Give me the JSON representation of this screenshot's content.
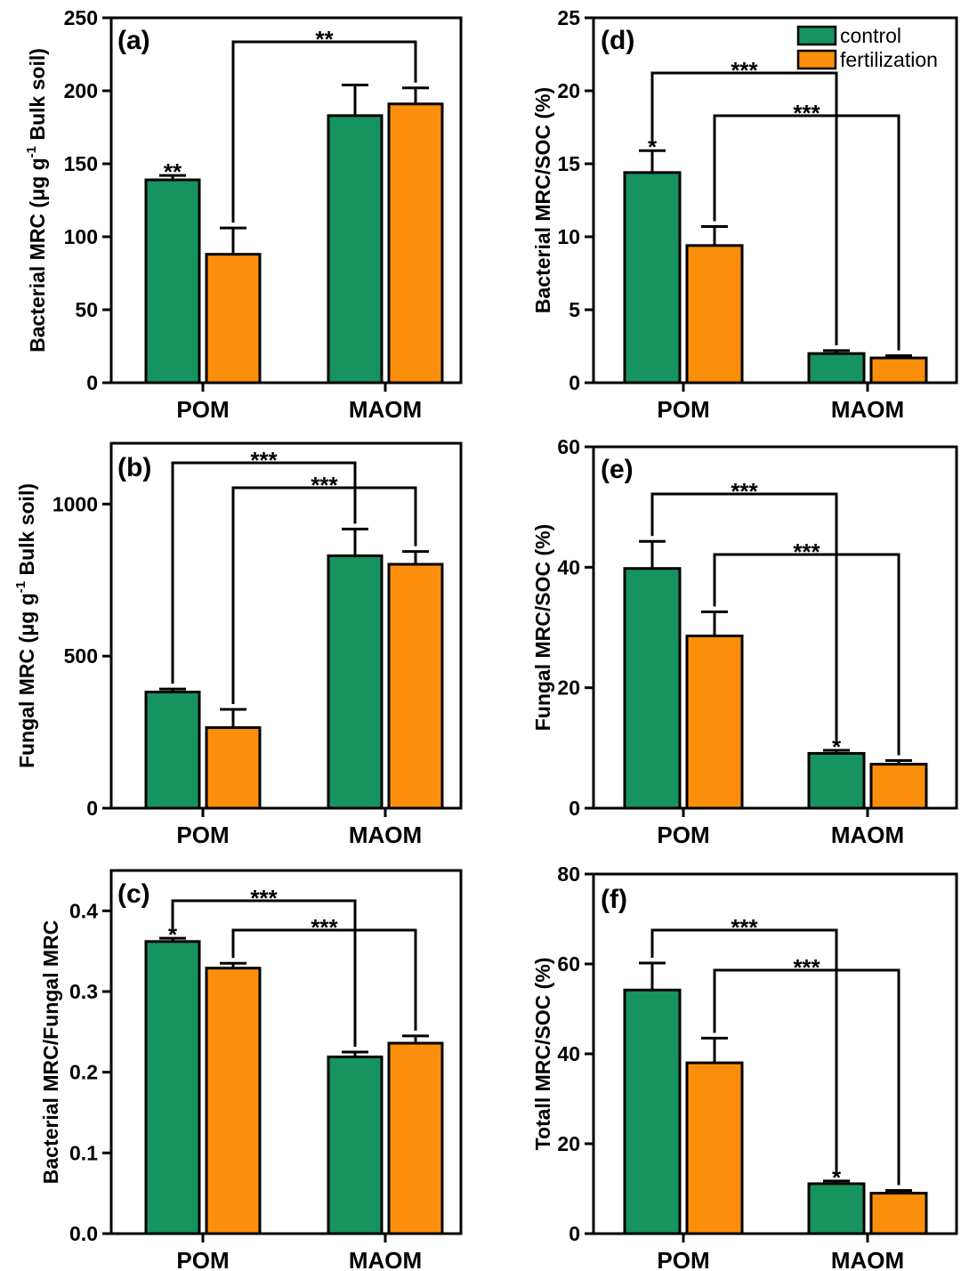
{
  "legend": [
    "control",
    "fertilization"
  ],
  "colors": {
    "control": "#16935e",
    "fertilization": "#fb8e0b"
  },
  "chart_data": [
    {
      "id": "a",
      "type": "bar",
      "panel_label": "(a)",
      "categories": [
        "POM",
        "MAOM"
      ],
      "ylabel": "Bacterial MRC (μg g-1 Bulk soil)",
      "ylabel_parts": [
        "Bacterial MRC (μg g",
        "-1",
        " Bulk soil)"
      ],
      "ylim": [
        0,
        250
      ],
      "yticks": [
        0,
        50,
        100,
        150,
        200,
        250
      ],
      "series": [
        {
          "name": "control",
          "values": [
            139,
            183
          ],
          "errors": [
            3,
            21
          ]
        },
        {
          "name": "fertilization",
          "values": [
            88,
            191
          ],
          "errors": [
            18,
            11
          ]
        }
      ],
      "stars": [
        {
          "text": "**",
          "cat": 0,
          "s": 0
        }
      ],
      "brackets": [
        {
          "text": "**",
          "from": [
            0,
            1
          ],
          "to": [
            1,
            1
          ]
        }
      ]
    },
    {
      "id": "b",
      "type": "bar",
      "panel_label": "(b)",
      "categories": [
        "POM",
        "MAOM"
      ],
      "ylabel": "Fungal MRC (μg g-1 Bulk soil)",
      "ylabel_parts": [
        "Fungal MRC (μg g",
        "-1",
        " Bulk soil)"
      ],
      "ylim": [
        0,
        1200
      ],
      "yticks": [
        0,
        500,
        1000
      ],
      "series": [
        {
          "name": "control",
          "values": [
            382,
            830
          ],
          "errors": [
            10,
            88
          ]
        },
        {
          "name": "fertilization",
          "values": [
            265,
            802
          ],
          "errors": [
            60,
            42
          ]
        }
      ],
      "stars": [],
      "brackets": [
        {
          "text": "***",
          "from": [
            0,
            0
          ],
          "to": [
            1,
            0
          ]
        },
        {
          "text": "***",
          "from": [
            0,
            1
          ],
          "to": [
            1,
            1
          ]
        }
      ]
    },
    {
      "id": "c",
      "type": "bar",
      "panel_label": "(c)",
      "categories": [
        "POM",
        "MAOM"
      ],
      "ylabel": "Bacterial MRC/Fungal MRC",
      "ylabel_parts": [
        "Bacterial MRC/Fungal MRC",
        "",
        ""
      ],
      "ylim": [
        0,
        0.45
      ],
      "yticks": [
        0.0,
        0.1,
        0.2,
        0.3,
        0.4
      ],
      "series": [
        {
          "name": "control",
          "values": [
            0.362,
            0.219
          ],
          "errors": [
            0.004,
            0.006
          ]
        },
        {
          "name": "fertilization",
          "values": [
            0.329,
            0.236
          ],
          "errors": [
            0.006,
            0.009
          ]
        }
      ],
      "stars": [
        {
          "text": "*",
          "cat": 0,
          "s": 0
        }
      ],
      "brackets": [
        {
          "text": "***",
          "from": [
            0,
            0
          ],
          "to": [
            1,
            0
          ]
        },
        {
          "text": "***",
          "from": [
            0,
            1
          ],
          "to": [
            1,
            1
          ]
        }
      ]
    },
    {
      "id": "d",
      "type": "bar",
      "panel_label": "(d)",
      "categories": [
        "POM",
        "MAOM"
      ],
      "ylabel": "Bacterial MRC/SOC (%)",
      "ylabel_parts": [
        "Bacterial MRC/SOC (%)",
        "",
        ""
      ],
      "ylim": [
        0,
        25
      ],
      "yticks": [
        0,
        5,
        10,
        15,
        20,
        25
      ],
      "series": [
        {
          "name": "control",
          "values": [
            14.4,
            2.0
          ],
          "errors": [
            1.5,
            0.2
          ]
        },
        {
          "name": "fertilization",
          "values": [
            9.4,
            1.7
          ],
          "errors": [
            1.3,
            0.15
          ]
        }
      ],
      "stars": [
        {
          "text": "*",
          "cat": 0,
          "s": 0
        }
      ],
      "brackets": [
        {
          "text": "***",
          "from": [
            0,
            0
          ],
          "to": [
            1,
            0
          ]
        },
        {
          "text": "***",
          "from": [
            0,
            1
          ],
          "to": [
            1,
            1
          ]
        }
      ]
    },
    {
      "id": "e",
      "type": "bar",
      "panel_label": "(e)",
      "categories": [
        "POM",
        "MAOM"
      ],
      "ylabel": "Fungal MRC/SOC (%)",
      "ylabel_parts": [
        "Fungal MRC/SOC (%)",
        "",
        ""
      ],
      "ylim": [
        0,
        60
      ],
      "yticks": [
        0,
        20,
        40,
        60
      ],
      "series": [
        {
          "name": "control",
          "values": [
            39.8,
            9.1
          ],
          "errors": [
            4.5,
            0.5
          ]
        },
        {
          "name": "fertilization",
          "values": [
            28.6,
            7.3
          ],
          "errors": [
            4.0,
            0.6
          ]
        }
      ],
      "stars": [
        {
          "text": "*",
          "cat": 1,
          "s": 0
        }
      ],
      "brackets": [
        {
          "text": "***",
          "from": [
            0,
            0
          ],
          "to": [
            1,
            0
          ]
        },
        {
          "text": "***",
          "from": [
            0,
            1
          ],
          "to": [
            1,
            1
          ]
        }
      ]
    },
    {
      "id": "f",
      "type": "bar",
      "panel_label": "(f)",
      "categories": [
        "POM",
        "MAOM"
      ],
      "ylabel": "Totall MRC/SOC (%)",
      "ylabel_parts": [
        "Totall MRC/SOC (%)",
        "",
        ""
      ],
      "ylim": [
        0,
        80
      ],
      "yticks": [
        0,
        20,
        40,
        60,
        80
      ],
      "series": [
        {
          "name": "control",
          "values": [
            54.2,
            11.1
          ],
          "errors": [
            6.0,
            0.6
          ]
        },
        {
          "name": "fertilization",
          "values": [
            38.0,
            9.0
          ],
          "errors": [
            5.5,
            0.6
          ]
        }
      ],
      "stars": [
        {
          "text": "*",
          "cat": 1,
          "s": 0
        }
      ],
      "brackets": [
        {
          "text": "***",
          "from": [
            0,
            0
          ],
          "to": [
            1,
            0
          ]
        },
        {
          "text": "***",
          "from": [
            0,
            1
          ],
          "to": [
            1,
            1
          ]
        }
      ]
    }
  ]
}
